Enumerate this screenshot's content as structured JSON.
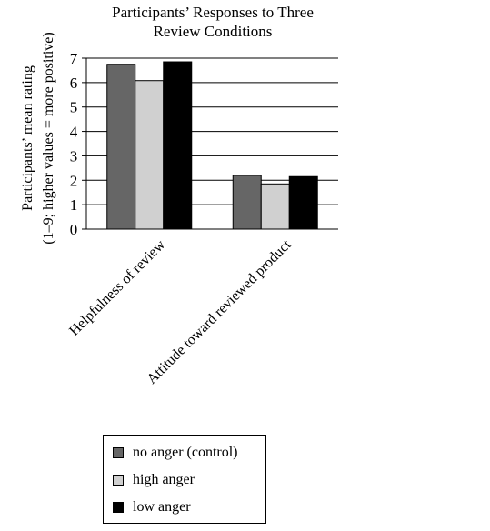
{
  "chart_data": {
    "type": "bar",
    "title": [
      "Participants’ Responses to Three",
      "Review Conditions"
    ],
    "ylabel": [
      "Participants’ mean rating",
      "(1–9; higher values = more positive)"
    ],
    "xlabel": "",
    "categories": [
      "Helpfulness of review",
      "Attitude toward reviewed product"
    ],
    "series": [
      {
        "name": "no anger (control)",
        "values": [
          6.75,
          2.2
        ],
        "color": "#666666"
      },
      {
        "name": "high anger",
        "values": [
          6.08,
          1.85
        ],
        "color": "#d0d0d0"
      },
      {
        "name": "low anger",
        "values": [
          6.85,
          2.15
        ],
        "color": "#000000"
      }
    ],
    "ylim": [
      0,
      7
    ],
    "yticks": [
      0,
      1,
      2,
      3,
      4,
      5,
      6,
      7
    ],
    "grid": true,
    "legend_position": "bottom"
  }
}
